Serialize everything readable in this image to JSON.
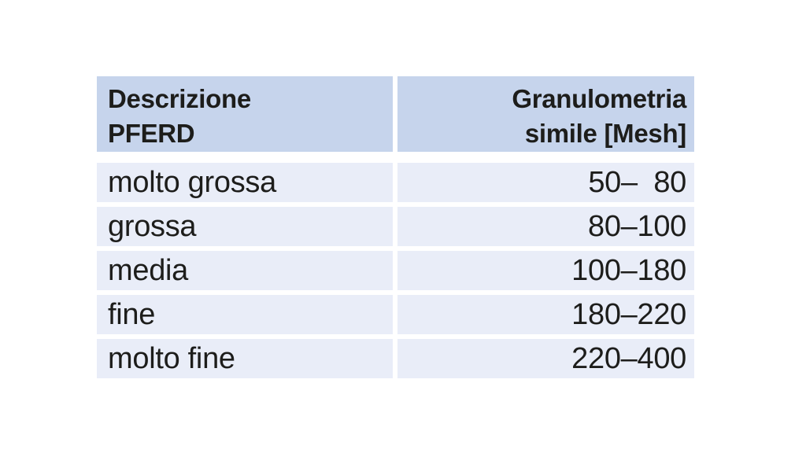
{
  "colors": {
    "page_background": "#ffffff",
    "header_bg": "#c6d4ec",
    "row_bg": "#e9edf8",
    "text": "#1d1d1b"
  },
  "table": {
    "columns": [
      {
        "header": "Descrizione\nPFERD",
        "align": "left"
      },
      {
        "header": "Granulometria\nsimile [Mesh]",
        "align": "right"
      }
    ],
    "rows": [
      {
        "descrizione": "molto grossa",
        "mesh": "50–  80"
      },
      {
        "descrizione": "grossa",
        "mesh": "80–100"
      },
      {
        "descrizione": "media",
        "mesh": "100–180"
      },
      {
        "descrizione": "fine",
        "mesh": "180–220"
      },
      {
        "descrizione": "molto fine",
        "mesh": "220–400"
      }
    ]
  }
}
